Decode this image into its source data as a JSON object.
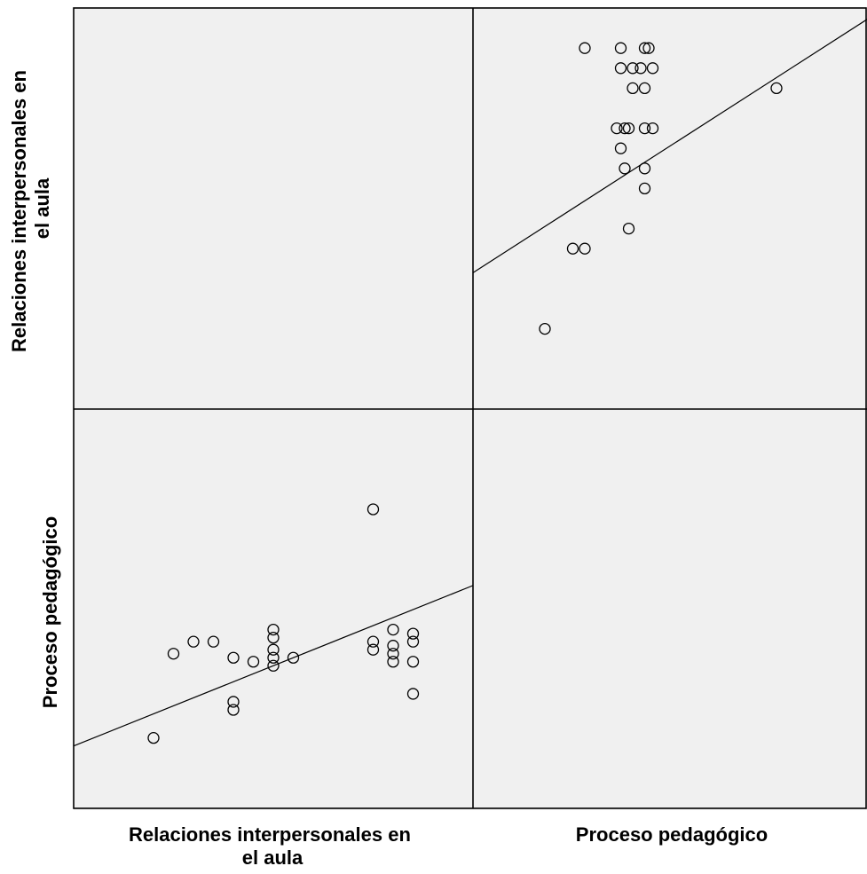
{
  "chart_data": {
    "type": "scatter",
    "variables": [
      "Relaciones interpersonales en el aula",
      "Proceso pedagógico"
    ],
    "row_labels": [
      [
        "Relaciones interpersonales en",
        "el aula"
      ],
      [
        "Proceso pedagógico"
      ]
    ],
    "column_labels": [
      [
        "Relaciones interpersonales en",
        "el aula"
      ],
      [
        "Proceso pedagógico"
      ]
    ],
    "grid": false,
    "legend": "none",
    "panels": [
      {
        "row": 0,
        "col": 1,
        "x_variable": "Proceso pedagógico",
        "y_variable": "Relaciones interpersonales en el aula",
        "xlim": [
          0,
          100
        ],
        "ylim": [
          0,
          100
        ],
        "points": [
          {
            "x": 28,
            "y": 90,
            "bold": false
          },
          {
            "x": 37,
            "y": 90,
            "bold": false
          },
          {
            "x": 43,
            "y": 90,
            "bold": true
          },
          {
            "x": 44,
            "y": 90,
            "bold": true
          },
          {
            "x": 37,
            "y": 85,
            "bold": true
          },
          {
            "x": 40,
            "y": 85,
            "bold": false
          },
          {
            "x": 42,
            "y": 85,
            "bold": false
          },
          {
            "x": 45,
            "y": 85,
            "bold": true
          },
          {
            "x": 40,
            "y": 80,
            "bold": false
          },
          {
            "x": 43,
            "y": 80,
            "bold": false
          },
          {
            "x": 76,
            "y": 80,
            "bold": true
          },
          {
            "x": 36,
            "y": 70,
            "bold": false
          },
          {
            "x": 38,
            "y": 70,
            "bold": true
          },
          {
            "x": 39,
            "y": 70,
            "bold": true
          },
          {
            "x": 43,
            "y": 70,
            "bold": false
          },
          {
            "x": 45,
            "y": 70,
            "bold": false
          },
          {
            "x": 37,
            "y": 65,
            "bold": false
          },
          {
            "x": 38,
            "y": 60,
            "bold": false
          },
          {
            "x": 43,
            "y": 60,
            "bold": true
          },
          {
            "x": 43,
            "y": 55,
            "bold": true
          },
          {
            "x": 39,
            "y": 45,
            "bold": true
          },
          {
            "x": 25,
            "y": 40,
            "bold": true
          },
          {
            "x": 28,
            "y": 40,
            "bold": false
          },
          {
            "x": 18,
            "y": 20,
            "bold": true
          }
        ],
        "fit_line": {
          "x": [
            0,
            100
          ],
          "y": [
            34,
            98
          ]
        }
      },
      {
        "row": 1,
        "col": 0,
        "x_variable": "Relaciones interpersonales en el aula",
        "y_variable": "Proceso pedagógico",
        "xlim": [
          0,
          100
        ],
        "ylim": [
          0,
          100
        ],
        "points": [
          {
            "x": 75,
            "y": 75,
            "bold": true
          },
          {
            "x": 50,
            "y": 45,
            "bold": false
          },
          {
            "x": 80,
            "y": 45,
            "bold": true
          },
          {
            "x": 85,
            "y": 44,
            "bold": false
          },
          {
            "x": 50,
            "y": 43,
            "bold": false
          },
          {
            "x": 50,
            "y": 40,
            "bold": false
          },
          {
            "x": 50,
            "y": 38,
            "bold": false
          },
          {
            "x": 50,
            "y": 36,
            "bold": false
          },
          {
            "x": 85,
            "y": 42,
            "bold": true
          },
          {
            "x": 30,
            "y": 42,
            "bold": true
          },
          {
            "x": 35,
            "y": 42,
            "bold": true
          },
          {
            "x": 75,
            "y": 42,
            "bold": false
          },
          {
            "x": 75,
            "y": 40,
            "bold": false
          },
          {
            "x": 80,
            "y": 41,
            "bold": false
          },
          {
            "x": 80,
            "y": 39,
            "bold": false
          },
          {
            "x": 80,
            "y": 37,
            "bold": true
          },
          {
            "x": 85,
            "y": 37,
            "bold": false
          },
          {
            "x": 45,
            "y": 37,
            "bold": false
          },
          {
            "x": 25,
            "y": 39,
            "bold": true
          },
          {
            "x": 55,
            "y": 38,
            "bold": false
          },
          {
            "x": 40,
            "y": 38,
            "bold": false
          },
          {
            "x": 40,
            "y": 27,
            "bold": false
          },
          {
            "x": 40,
            "y": 25,
            "bold": true
          },
          {
            "x": 85,
            "y": 29,
            "bold": false
          },
          {
            "x": 20,
            "y": 18,
            "bold": true
          }
        ],
        "fit_line": {
          "x": [
            0,
            100
          ],
          "y": [
            16,
            56
          ]
        }
      }
    ]
  }
}
